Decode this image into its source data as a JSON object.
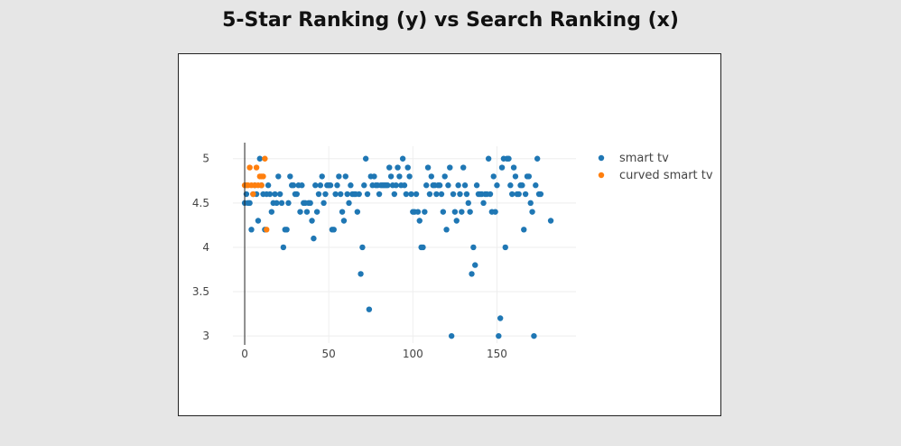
{
  "page": {
    "title": "5-Star Ranking (y) vs Search Ranking (x)"
  },
  "chart_data": {
    "type": "scatter",
    "title": "5-Star Ranking (y) vs Search Ranking (x)",
    "xlabel": "",
    "ylabel": "",
    "xlim": [
      -7,
      197
    ],
    "ylim": [
      2.92,
      5.14
    ],
    "x_ticks": [
      0,
      50,
      100,
      150
    ],
    "y_ticks": [
      3,
      3.5,
      4,
      4.5,
      5
    ],
    "x_tick_labels": [
      "0",
      "50",
      "100",
      "150"
    ],
    "y_tick_labels": [
      "3",
      "3.5",
      "4",
      "4.5",
      "5"
    ],
    "grid": true,
    "legend_position": "top-right",
    "series": [
      {
        "name": "smart tv",
        "color": "#1f77b4",
        "points": [
          [
            0,
            4.5
          ],
          [
            1,
            4.6
          ],
          [
            2,
            4.5
          ],
          [
            3,
            4.5
          ],
          [
            4,
            4.2
          ],
          [
            5,
            4.6
          ],
          [
            6,
            4.7
          ],
          [
            7,
            4.6
          ],
          [
            8,
            4.3
          ],
          [
            9,
            5.0
          ],
          [
            10,
            4.7
          ],
          [
            11,
            4.6
          ],
          [
            12,
            4.2
          ],
          [
            13,
            4.6
          ],
          [
            14,
            4.7
          ],
          [
            15,
            4.6
          ],
          [
            16,
            4.4
          ],
          [
            17,
            4.5
          ],
          [
            18,
            4.6
          ],
          [
            19,
            4.5
          ],
          [
            20,
            4.8
          ],
          [
            21,
            4.6
          ],
          [
            22,
            4.5
          ],
          [
            23,
            4.0
          ],
          [
            24,
            4.2
          ],
          [
            25,
            4.2
          ],
          [
            26,
            4.5
          ],
          [
            27,
            4.8
          ],
          [
            28,
            4.7
          ],
          [
            29,
            4.7
          ],
          [
            30,
            4.6
          ],
          [
            31,
            4.6
          ],
          [
            32,
            4.7
          ],
          [
            33,
            4.4
          ],
          [
            34,
            4.7
          ],
          [
            35,
            4.5
          ],
          [
            36,
            4.5
          ],
          [
            37,
            4.4
          ],
          [
            38,
            4.5
          ],
          [
            39,
            4.5
          ],
          [
            40,
            4.3
          ],
          [
            41,
            4.1
          ],
          [
            42,
            4.7
          ],
          [
            43,
            4.4
          ],
          [
            44,
            4.6
          ],
          [
            45,
            4.7
          ],
          [
            46,
            4.8
          ],
          [
            47,
            4.5
          ],
          [
            48,
            4.6
          ],
          [
            49,
            4.7
          ],
          [
            50,
            4.7
          ],
          [
            51,
            4.7
          ],
          [
            52,
            4.2
          ],
          [
            53,
            4.2
          ],
          [
            54,
            4.6
          ],
          [
            55,
            4.7
          ],
          [
            56,
            4.8
          ],
          [
            57,
            4.6
          ],
          [
            58,
            4.4
          ],
          [
            59,
            4.3
          ],
          [
            60,
            4.8
          ],
          [
            61,
            4.6
          ],
          [
            62,
            4.5
          ],
          [
            63,
            4.7
          ],
          [
            64,
            4.6
          ],
          [
            65,
            4.6
          ],
          [
            66,
            4.6
          ],
          [
            67,
            4.4
          ],
          [
            68,
            4.6
          ],
          [
            69,
            3.7
          ],
          [
            70,
            4.0
          ],
          [
            71,
            4.7
          ],
          [
            72,
            5.0
          ],
          [
            73,
            4.6
          ],
          [
            74,
            3.3
          ],
          [
            75,
            4.8
          ],
          [
            76,
            4.7
          ],
          [
            77,
            4.8
          ],
          [
            78,
            4.7
          ],
          [
            79,
            4.7
          ],
          [
            80,
            4.6
          ],
          [
            81,
            4.7
          ],
          [
            82,
            4.7
          ],
          [
            83,
            4.7
          ],
          [
            84,
            4.7
          ],
          [
            85,
            4.7
          ],
          [
            86,
            4.9
          ],
          [
            87,
            4.8
          ],
          [
            88,
            4.7
          ],
          [
            89,
            4.6
          ],
          [
            90,
            4.7
          ],
          [
            91,
            4.9
          ],
          [
            92,
            4.8
          ],
          [
            93,
            4.7
          ],
          [
            94,
            5.0
          ],
          [
            95,
            4.7
          ],
          [
            96,
            4.6
          ],
          [
            97,
            4.9
          ],
          [
            98,
            4.8
          ],
          [
            99,
            4.6
          ],
          [
            100,
            4.4
          ],
          [
            101,
            4.4
          ],
          [
            102,
            4.6
          ],
          [
            103,
            4.4
          ],
          [
            104,
            4.3
          ],
          [
            105,
            4.0
          ],
          [
            106,
            4.0
          ],
          [
            107,
            4.4
          ],
          [
            108,
            4.7
          ],
          [
            109,
            4.9
          ],
          [
            110,
            4.6
          ],
          [
            111,
            4.8
          ],
          [
            112,
            4.7
          ],
          [
            113,
            4.7
          ],
          [
            114,
            4.6
          ],
          [
            115,
            4.7
          ],
          [
            116,
            4.7
          ],
          [
            117,
            4.6
          ],
          [
            118,
            4.4
          ],
          [
            119,
            4.8
          ],
          [
            120,
            4.2
          ],
          [
            121,
            4.7
          ],
          [
            122,
            4.9
          ],
          [
            123,
            3.0
          ],
          [
            124,
            4.6
          ],
          [
            125,
            4.4
          ],
          [
            126,
            4.3
          ],
          [
            127,
            4.7
          ],
          [
            128,
            4.6
          ],
          [
            129,
            4.4
          ],
          [
            130,
            4.9
          ],
          [
            131,
            4.7
          ],
          [
            132,
            4.6
          ],
          [
            133,
            4.5
          ],
          [
            134,
            4.4
          ],
          [
            135,
            3.7
          ],
          [
            136,
            4.0
          ],
          [
            137,
            3.8
          ],
          [
            138,
            4.7
          ],
          [
            139,
            4.6
          ],
          [
            140,
            4.6
          ],
          [
            141,
            4.6
          ],
          [
            142,
            4.5
          ],
          [
            143,
            4.6
          ],
          [
            144,
            4.6
          ],
          [
            145,
            5.0
          ],
          [
            146,
            4.6
          ],
          [
            147,
            4.4
          ],
          [
            148,
            4.8
          ],
          [
            149,
            4.4
          ],
          [
            150,
            4.7
          ],
          [
            151,
            3.0
          ],
          [
            152,
            3.2
          ],
          [
            153,
            4.9
          ],
          [
            154,
            5.0
          ],
          [
            155,
            4.0
          ],
          [
            156,
            5.0
          ],
          [
            157,
            5.0
          ],
          [
            158,
            4.7
          ],
          [
            159,
            4.6
          ],
          [
            160,
            4.9
          ],
          [
            161,
            4.8
          ],
          [
            162,
            4.6
          ],
          [
            163,
            4.6
          ],
          [
            164,
            4.7
          ],
          [
            165,
            4.7
          ],
          [
            166,
            4.2
          ],
          [
            167,
            4.6
          ],
          [
            168,
            4.8
          ],
          [
            169,
            4.8
          ],
          [
            170,
            4.5
          ],
          [
            171,
            4.4
          ],
          [
            172,
            3.0
          ],
          [
            173,
            4.7
          ],
          [
            174,
            5.0
          ],
          [
            175,
            4.6
          ],
          [
            176,
            4.6
          ],
          [
            182,
            4.3
          ]
        ]
      },
      {
        "name": "curved smart tv",
        "color": "#ff7f0e",
        "points": [
          [
            0,
            4.7
          ],
          [
            1,
            4.7
          ],
          [
            2,
            4.7
          ],
          [
            3,
            4.9
          ],
          [
            4,
            4.7
          ],
          [
            5,
            4.6
          ],
          [
            6,
            4.7
          ],
          [
            7,
            4.9
          ],
          [
            8,
            4.7
          ],
          [
            9,
            4.8
          ],
          [
            10,
            4.8
          ],
          [
            11,
            4.8
          ],
          [
            12,
            5.0
          ],
          [
            13,
            4.2
          ],
          [
            10,
            4.7
          ]
        ]
      }
    ]
  }
}
